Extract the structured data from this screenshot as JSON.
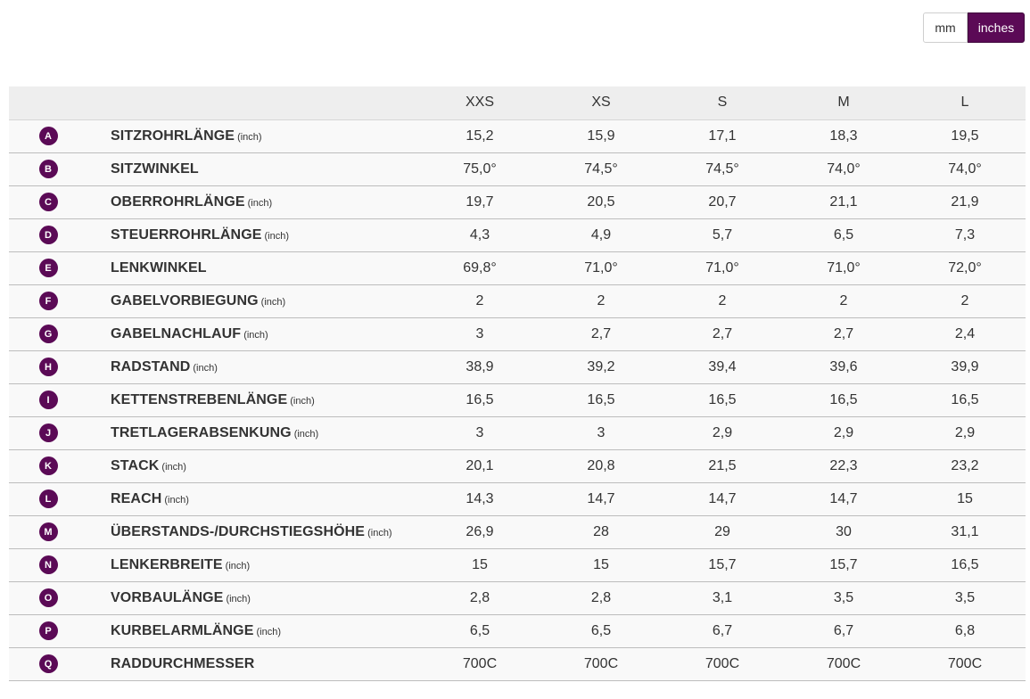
{
  "unit_toggle": {
    "mm_label": "mm",
    "inches_label": "inches",
    "active": "inches"
  },
  "sizes": [
    "XXS",
    "XS",
    "S",
    "M",
    "L"
  ],
  "rows": [
    {
      "letter": "A",
      "label": "SITZROHRLÄNGE",
      "unit": "(inch)",
      "values": [
        "15,2",
        "15,9",
        "17,1",
        "18,3",
        "19,5"
      ]
    },
    {
      "letter": "B",
      "label": "SITZWINKEL",
      "unit": "",
      "values": [
        "75,0°",
        "74,5°",
        "74,5°",
        "74,0°",
        "74,0°"
      ]
    },
    {
      "letter": "C",
      "label": "OBERROHRLÄNGE",
      "unit": "(inch)",
      "values": [
        "19,7",
        "20,5",
        "20,7",
        "21,1",
        "21,9"
      ]
    },
    {
      "letter": "D",
      "label": "STEUERROHRLÄNGE",
      "unit": "(inch)",
      "values": [
        "4,3",
        "4,9",
        "5,7",
        "6,5",
        "7,3"
      ]
    },
    {
      "letter": "E",
      "label": "LENKWINKEL",
      "unit": "",
      "values": [
        "69,8°",
        "71,0°",
        "71,0°",
        "71,0°",
        "72,0°"
      ]
    },
    {
      "letter": "F",
      "label": "GABELVORBIEGUNG",
      "unit": "(inch)",
      "values": [
        "2",
        "2",
        "2",
        "2",
        "2"
      ]
    },
    {
      "letter": "G",
      "label": "GABELNACHLAUF",
      "unit": "(inch)",
      "values": [
        "3",
        "2,7",
        "2,7",
        "2,7",
        "2,4"
      ]
    },
    {
      "letter": "H",
      "label": "RADSTAND",
      "unit": "(inch)",
      "values": [
        "38,9",
        "39,2",
        "39,4",
        "39,6",
        "39,9"
      ]
    },
    {
      "letter": "I",
      "label": "KETTENSTREBENLÄNGE",
      "unit": "(inch)",
      "values": [
        "16,5",
        "16,5",
        "16,5",
        "16,5",
        "16,5"
      ]
    },
    {
      "letter": "J",
      "label": "TRETLAGERABSENKUNG",
      "unit": "(inch)",
      "values": [
        "3",
        "3",
        "2,9",
        "2,9",
        "2,9"
      ]
    },
    {
      "letter": "K",
      "label": "STACK",
      "unit": "(inch)",
      "values": [
        "20,1",
        "20,8",
        "21,5",
        "22,3",
        "23,2"
      ]
    },
    {
      "letter": "L",
      "label": "REACH",
      "unit": "(inch)",
      "values": [
        "14,3",
        "14,7",
        "14,7",
        "14,7",
        "15"
      ]
    },
    {
      "letter": "M",
      "label": "ÜBERSTANDS-/DURCHSTIEGSHÖHE",
      "unit": "(inch)",
      "values": [
        "26,9",
        "28",
        "29",
        "30",
        "31,1"
      ]
    },
    {
      "letter": "N",
      "label": "LENKERBREITE",
      "unit": "(inch)",
      "values": [
        "15",
        "15",
        "15,7",
        "15,7",
        "16,5"
      ]
    },
    {
      "letter": "O",
      "label": "VORBAULÄNGE",
      "unit": "(inch)",
      "values": [
        "2,8",
        "2,8",
        "3,1",
        "3,5",
        "3,5"
      ]
    },
    {
      "letter": "P",
      "label": "KURBELARMLÄNGE",
      "unit": "(inch)",
      "values": [
        "6,5",
        "6,5",
        "6,7",
        "6,7",
        "6,8"
      ]
    },
    {
      "letter": "Q",
      "label": "RADDURCHMESSER",
      "unit": "",
      "values": [
        "700C",
        "700C",
        "700C",
        "700C",
        "700C"
      ]
    }
  ],
  "colors": {
    "accent": "#5b0a56",
    "header_bg": "#eeeeee",
    "row_bg": "#f9f9f9",
    "row_border": "#bdbdbd"
  }
}
